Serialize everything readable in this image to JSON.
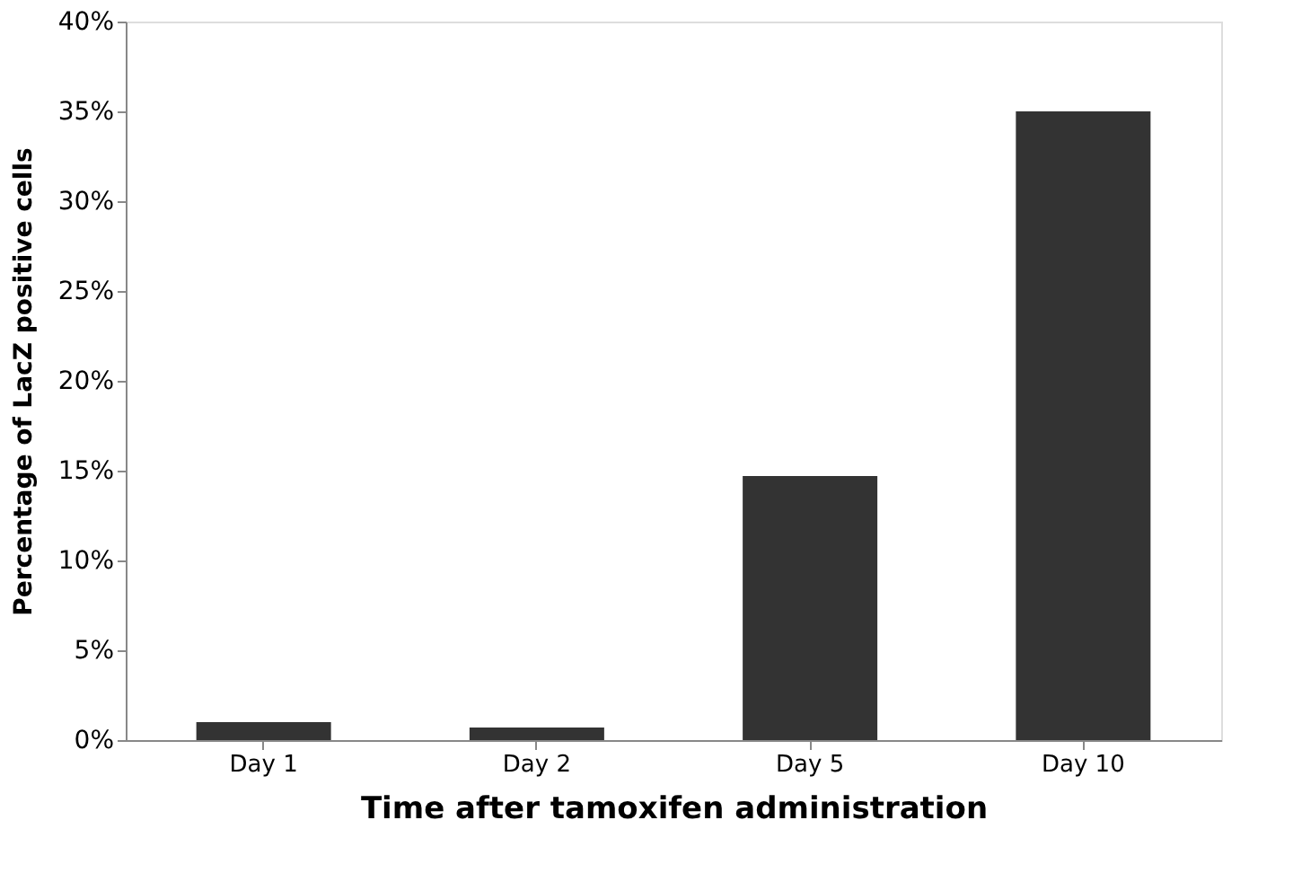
{
  "chart_data": {
    "type": "bar",
    "xlabel": "Time after tamoxifen administration",
    "ylabel": "Percentage of LacZ positive cells",
    "categories": [
      "Day 1",
      "Day 2",
      "Day 5",
      "Day 10"
    ],
    "values": [
      1.0,
      0.7,
      14.7,
      35.0
    ],
    "color": "#333333",
    "ylim": [
      0,
      40
    ],
    "yticks": [
      {
        "value": 0,
        "label": "0%"
      },
      {
        "value": 5,
        "label": "5%"
      },
      {
        "value": 10,
        "label": "10%"
      },
      {
        "value": 15,
        "label": "15%"
      },
      {
        "value": 20,
        "label": "20%"
      },
      {
        "value": 25,
        "label": "25%"
      },
      {
        "value": 30,
        "label": "30%"
      },
      {
        "value": 35,
        "label": "35%"
      },
      {
        "value": 40,
        "label": "40%"
      }
    ],
    "grid": false
  }
}
